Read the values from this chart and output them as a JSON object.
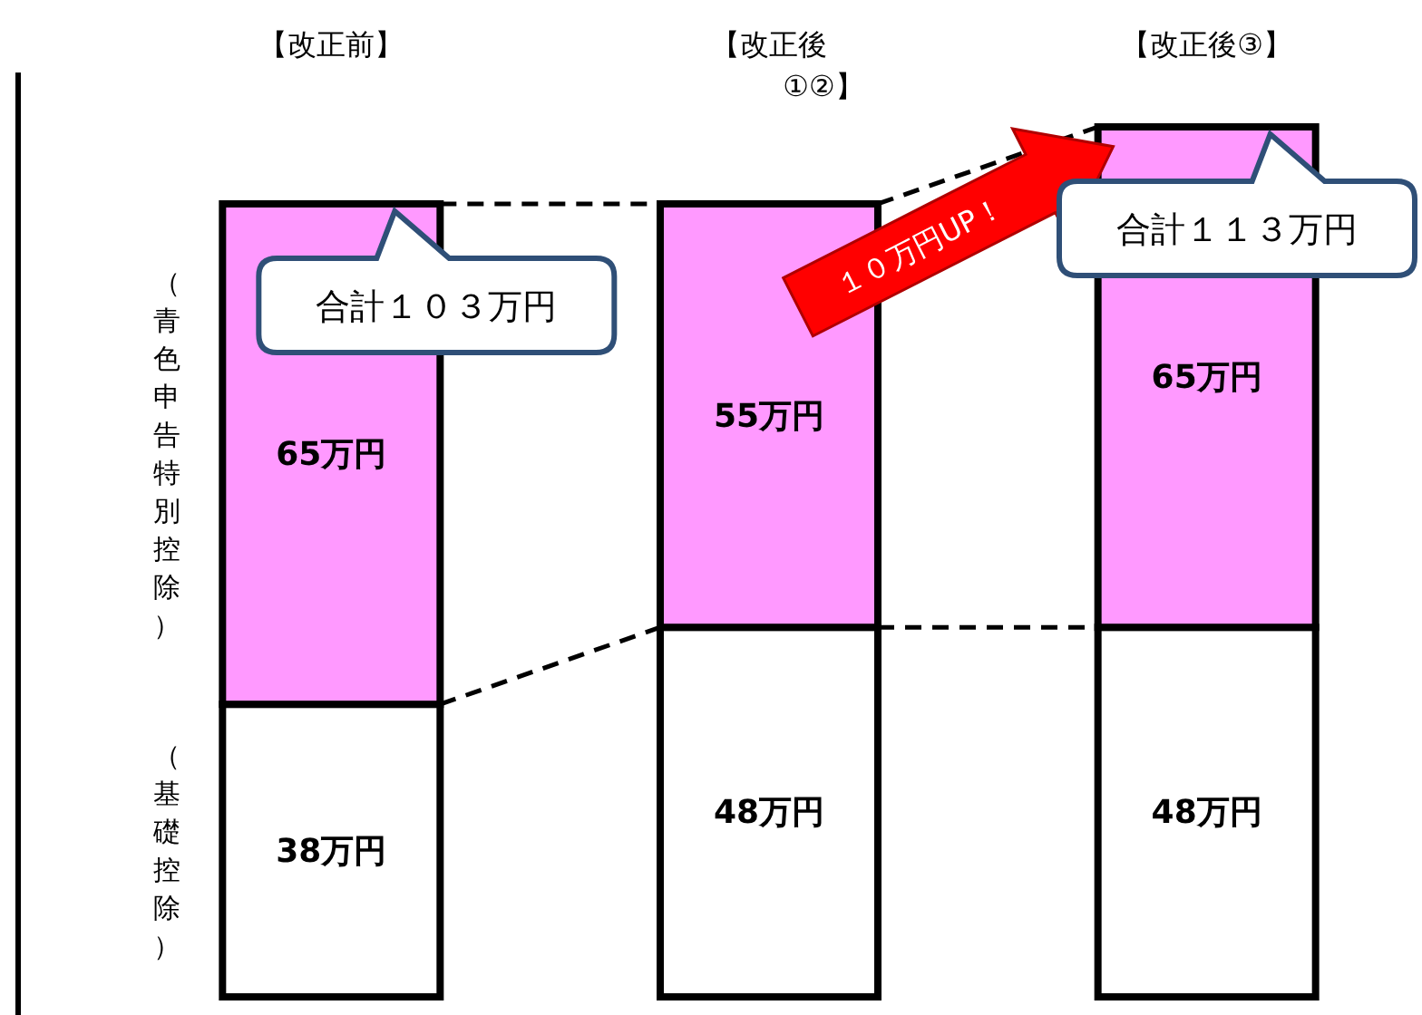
{
  "chart_data": {
    "type": "bar",
    "stacked": true,
    "categories": [
      "【改正前】",
      "【改正後\n①②】",
      "【改正後③】"
    ],
    "series": [
      {
        "name": "（基礎控除）",
        "color": "#ffffff",
        "values": [
          38,
          48,
          48
        ],
        "value_labels": [
          "38万円",
          "48万円",
          "48万円"
        ]
      },
      {
        "name": "（青色申告特別控除）",
        "color": "#ff99ff",
        "values": [
          65,
          55,
          65
        ],
        "value_labels": [
          "65万円",
          "55万円",
          "65万円"
        ]
      }
    ],
    "annotations": [
      {
        "text": "合計１０３万円",
        "x": "【改正前】",
        "y": 103
      },
      "１０万円UP！",
      {
        "text": "合計１１３万円",
        "x": "【改正後③】",
        "y": 113
      }
    ]
  }
}
